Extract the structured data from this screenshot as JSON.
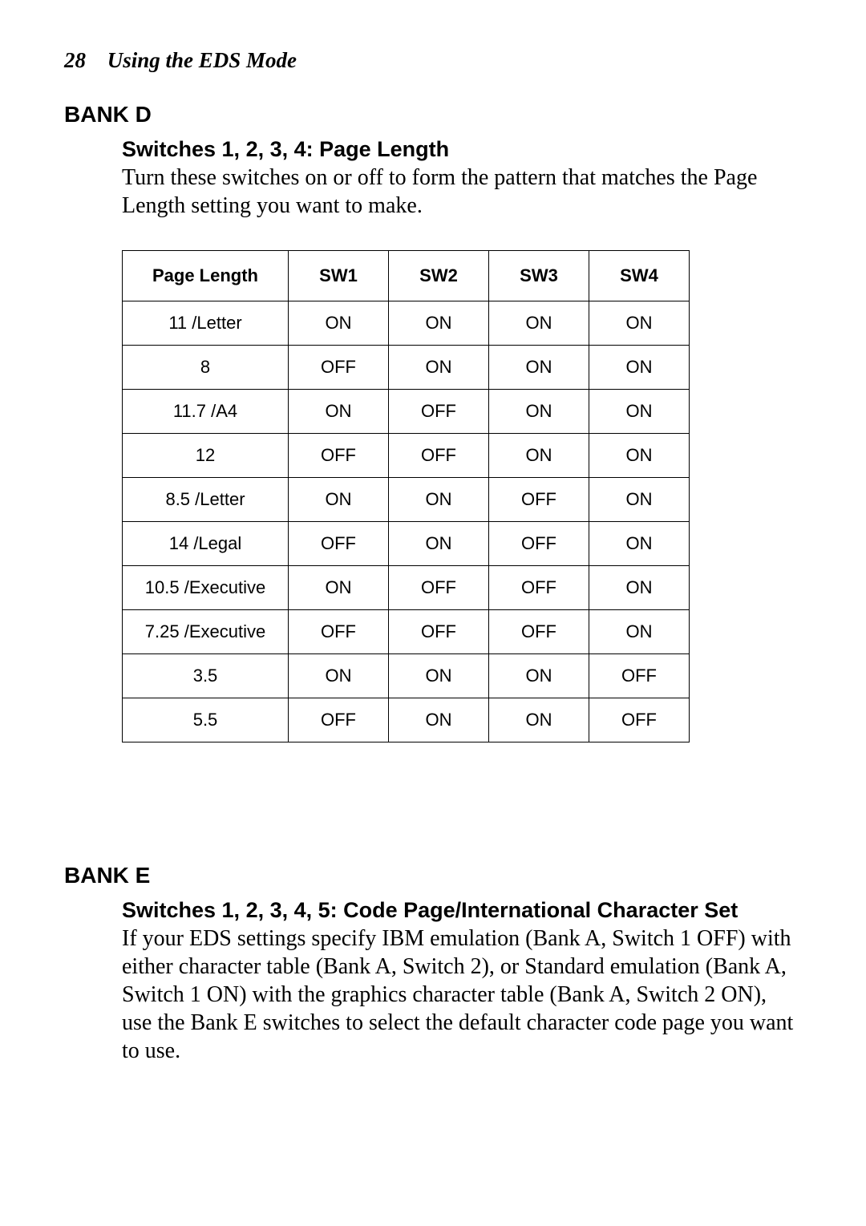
{
  "header": {
    "page_number": "28",
    "title": "Using the EDS Mode"
  },
  "bank_d": {
    "heading": "BANK D",
    "sub_heading": "Switches 1, 2, 3, 4: Page Length",
    "body": "Turn these switches on or off to form the pattern that matches the Page Length setting you want to make.",
    "table": {
      "columns": [
        "Page Length",
        "SW1",
        "SW2",
        "SW3",
        "SW4"
      ],
      "rows": [
        [
          "11 /Letter",
          "ON",
          "ON",
          "ON",
          "ON"
        ],
        [
          "8",
          "OFF",
          "ON",
          "ON",
          "ON"
        ],
        [
          "11.7 /A4",
          "ON",
          "OFF",
          "ON",
          "ON"
        ],
        [
          "12",
          "OFF",
          "OFF",
          "ON",
          "ON"
        ],
        [
          "8.5 /Letter",
          "ON",
          "ON",
          "OFF",
          "ON"
        ],
        [
          "14 /Legal",
          "OFF",
          "ON",
          "OFF",
          "ON"
        ],
        [
          "10.5 /Executive",
          "ON",
          "OFF",
          "OFF",
          "ON"
        ],
        [
          "7.25 /Executive",
          "OFF",
          "OFF",
          "OFF",
          "ON"
        ],
        [
          "3.5",
          "ON",
          "ON",
          "ON",
          "OFF"
        ],
        [
          "5.5",
          "OFF",
          "ON",
          "ON",
          "OFF"
        ]
      ]
    }
  },
  "bank_e": {
    "heading": "BANK E",
    "sub_heading": "Switches 1, 2, 3, 4, 5: Code Page/International Character Set",
    "body": "If your EDS settings specify IBM emulation (Bank A, Switch 1 OFF) with either character table (Bank A, Switch 2), or Standard emulation (Bank A, Switch 1 ON) with the graphics character table (Bank A, Switch 2 ON), use the Bank E switches to select the default character code page you want to use."
  }
}
